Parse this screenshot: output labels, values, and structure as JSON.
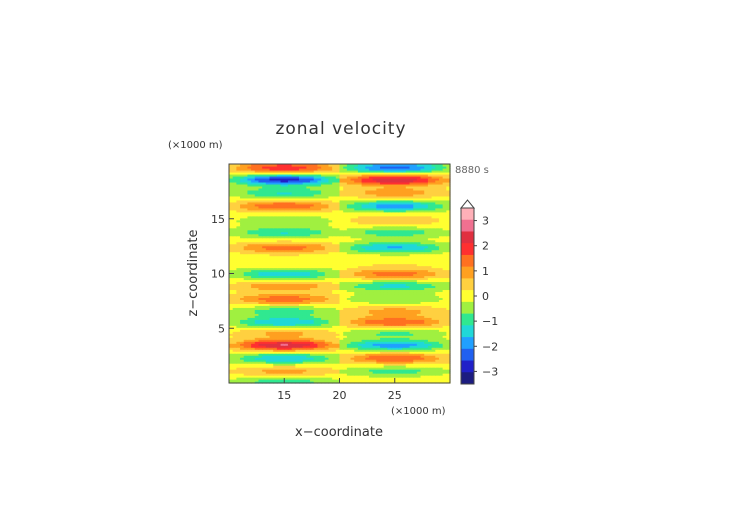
{
  "chart_data": {
    "type": "heatmap",
    "title": "zonal velocity",
    "xlabel": "x−coordinate",
    "ylabel": "z−coordinate",
    "x_unit": "(×1000 m)",
    "y_unit": "(×1000 m)",
    "time_label": "8880 s",
    "xlim": [
      10,
      30
    ],
    "ylim": [
      0,
      20
    ],
    "xticks": [
      "15",
      "20",
      "25"
    ],
    "yticks": [
      "5",
      "10",
      "15"
    ],
    "grid": false,
    "colorbar": {
      "ticks": [
        "3",
        "2",
        "1",
        "0",
        "−1",
        "−2",
        "−3"
      ],
      "min": -3.5,
      "max": 3.5,
      "extend": "max",
      "colors": [
        "#1c1c80",
        "#2020c8",
        "#2060f0",
        "#20a0ff",
        "#20d8d8",
        "#30e890",
        "#a0f040",
        "#ffff30",
        "#ffd040",
        "#ffa020",
        "#ff7020",
        "#ff3030",
        "#e03040",
        "#f07090",
        "#ffb0b8"
      ]
    },
    "bands": [
      {
        "z": 19.7,
        "left": 2.0,
        "right": -2.3
      },
      {
        "z": 18.6,
        "left": -2.8,
        "right": 2.6
      },
      {
        "z": 17.4,
        "left": -1.2,
        "right": 1.0
      },
      {
        "z": 16.2,
        "left": 1.6,
        "right": -1.9
      },
      {
        "z": 14.9,
        "left": -0.6,
        "right": 0.6
      },
      {
        "z": 13.8,
        "left": -1.2,
        "right": -1.0
      },
      {
        "z": 12.4,
        "left": 1.4,
        "right": -1.7
      },
      {
        "z": 11.0,
        "left": 0.2,
        "right": 0.2
      },
      {
        "z": 10.0,
        "left": -1.5,
        "right": 1.4
      },
      {
        "z": 8.9,
        "left": 1.1,
        "right": -1.3
      },
      {
        "z": 7.7,
        "left": 1.5,
        "right": -0.6
      },
      {
        "z": 6.6,
        "left": -1.0,
        "right": 0.9
      },
      {
        "z": 5.6,
        "left": -1.6,
        "right": 1.6
      },
      {
        "z": 4.6,
        "left": 0.8,
        "right": -0.8
      },
      {
        "z": 3.5,
        "left": 2.6,
        "right": -1.9
      },
      {
        "z": 2.3,
        "left": -1.6,
        "right": 1.6
      },
      {
        "z": 1.1,
        "left": 0.9,
        "right": -0.9
      },
      {
        "z": 0.2,
        "left": -1.0,
        "right": 0.2
      }
    ]
  }
}
